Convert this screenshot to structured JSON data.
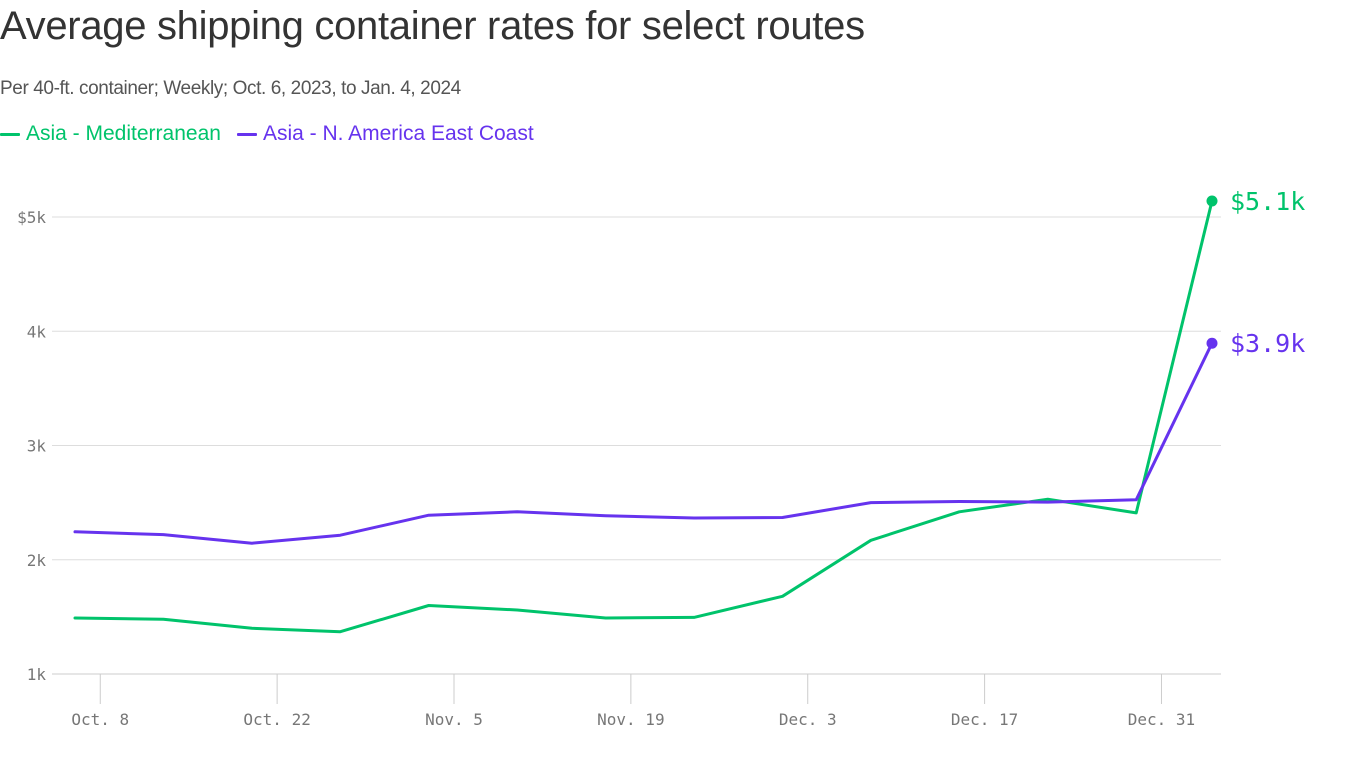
{
  "chart_data": {
    "type": "line",
    "title": "Average shipping container rates for select routes",
    "subtitle": "Per 40-ft. container; Weekly; Oct. 6, 2023, to Jan. 4, 2024",
    "xlabel": "",
    "ylabel": "",
    "x": [
      "2023-10-06",
      "2023-10-13",
      "2023-10-20",
      "2023-10-27",
      "2023-11-03",
      "2023-11-10",
      "2023-11-17",
      "2023-11-24",
      "2023-12-01",
      "2023-12-08",
      "2023-12-15",
      "2023-12-22",
      "2023-12-29",
      "2024-01-04"
    ],
    "x_ticks": [
      "2023-10-08",
      "2023-10-22",
      "2023-11-05",
      "2023-11-19",
      "2023-12-03",
      "2023-12-17",
      "2023-12-31"
    ],
    "x_tick_labels": [
      "Oct. 8",
      "Oct. 22",
      "Nov. 5",
      "Nov. 19",
      "Dec. 3",
      "Dec. 17",
      "Dec. 31"
    ],
    "y_ticks": [
      1000,
      2000,
      3000,
      4000,
      5000
    ],
    "y_tick_labels": [
      "1k",
      "2k",
      "3k",
      "4k",
      "$5k"
    ],
    "ylim": [
      1000,
      5300
    ],
    "grid": true,
    "legend_placement": "top-left",
    "series": [
      {
        "name": "Asia - Mediterranean",
        "color": "#00c36b",
        "values": [
          1490,
          1480,
          1400,
          1370,
          1600,
          1560,
          1490,
          1495,
          1680,
          2170,
          2420,
          2530,
          2410,
          5140
        ],
        "end_label": "$5.1k"
      },
      {
        "name": "Asia - N. America East Coast",
        "color": "#6633ee",
        "values": [
          2245,
          2220,
          2145,
          2215,
          2390,
          2420,
          2385,
          2365,
          2370,
          2500,
          2510,
          2505,
          2525,
          3895
        ],
        "end_label": "$3.9k"
      }
    ]
  }
}
